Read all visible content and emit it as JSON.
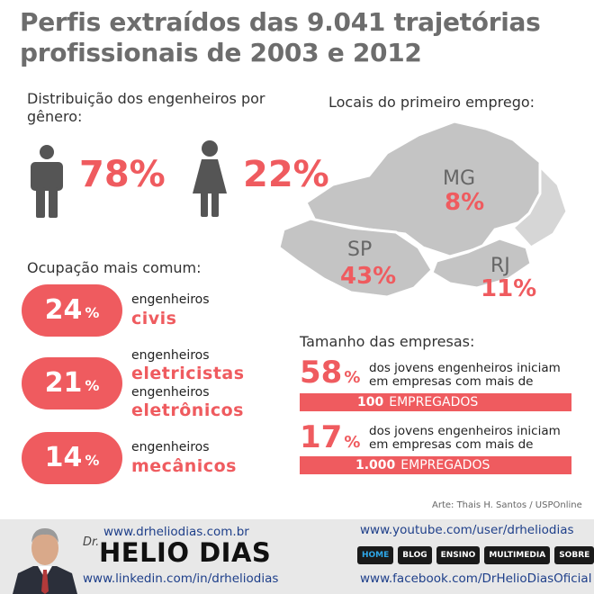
{
  "title": "Perfis extraídos das 9.041 trajetórias profissionais de 2003 e 2012",
  "gender": {
    "heading": "Distribuição dos engenheiros por gênero:",
    "male_pct": "78%",
    "female_pct": "22%",
    "male_icon": "male-person-icon",
    "female_icon": "female-person-icon"
  },
  "first_job": {
    "heading": "Locais do primeiro emprego:",
    "states": [
      {
        "code": "MG",
        "pct": "8%"
      },
      {
        "code": "SP",
        "pct": "43%"
      },
      {
        "code": "RJ",
        "pct": "11%"
      }
    ]
  },
  "occupation": {
    "heading": "Ocupação mais comum:",
    "items": [
      {
        "num": "24",
        "sign": "%",
        "small": "engenheiros",
        "big": "civis"
      },
      {
        "num": "21",
        "sign": "%",
        "small": "engenheiros",
        "big": "eletricistas",
        "small2": "engenheiros",
        "big2": "eletrônicos"
      },
      {
        "num": "14",
        "sign": "%",
        "small": "engenheiros",
        "big": "mecânicos"
      }
    ]
  },
  "company_size": {
    "heading": "Tamanho das empresas:",
    "items": [
      {
        "num": "58",
        "sign": "%",
        "text1": "dos jovens engenheiros iniciam",
        "text2": "em empresas com mais de",
        "bar_num": "100",
        "bar_label": "EMPREGADOS"
      },
      {
        "num": "17",
        "sign": "%",
        "text1": "dos jovens engenheiros iniciam",
        "text2": "em empresas com mais de",
        "bar_num": "1.000",
        "bar_label": "EMPREGADOS"
      }
    ]
  },
  "credit": "Arte: Thais H. Santos / USPOnline",
  "footer": {
    "site": "www.drheliodias.com.br",
    "dr": "Dr.",
    "name": "HELIO DIAS",
    "linkedin": "www.linkedin.com/in/drheliodias",
    "youtube": "www.youtube.com/user/drheliodias",
    "facebook": "www.facebook.com/DrHelioDiasOficial",
    "nav": [
      "HOME",
      "BLOG",
      "ENSINO",
      "MULTIMEDIA",
      "SOBRE"
    ]
  },
  "colors": {
    "accent": "#ef5b5f",
    "title_gray": "#6d6d6d",
    "map_gray": "#bdbdbd"
  }
}
